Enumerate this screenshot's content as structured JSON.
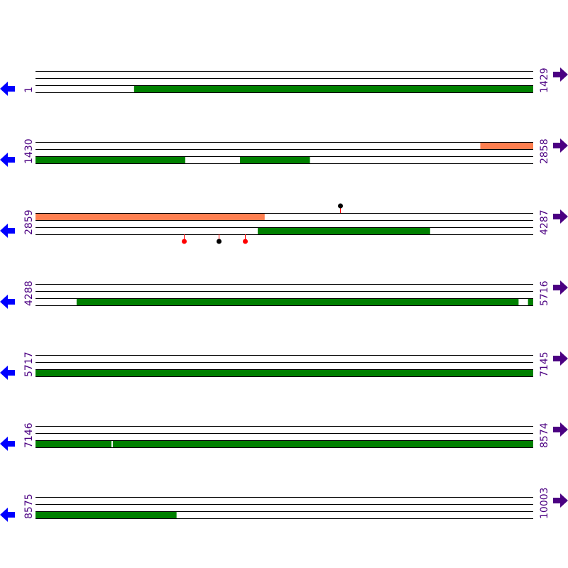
{
  "colors": {
    "line": "#000000",
    "cds": "#008000",
    "region": "#ff7f50",
    "stem": "#ff0000",
    "arrow_left": "#0000ff",
    "arrow_right": "#4b0082",
    "label": "#4b0082"
  },
  "icons": {
    "left": "arrow-left-icon",
    "right": "arrow-right-icon"
  },
  "rows": [
    {
      "start": "1",
      "end": "1429",
      "from": 1,
      "to": 1429,
      "features": [
        {
          "track": 2,
          "type": "cds",
          "from": 284,
          "to": 1429
        }
      ],
      "markers": []
    },
    {
      "start": "1430",
      "end": "2858",
      "from": 1430,
      "to": 2858,
      "features": [
        {
          "track": 0,
          "type": "region",
          "from": 2707,
          "to": 2858
        },
        {
          "track": 2,
          "type": "cds",
          "from": 1430,
          "to": 1860
        },
        {
          "track": 2,
          "type": "cds",
          "from": 2017,
          "to": 2218
        }
      ],
      "markers": []
    },
    {
      "start": "2859",
      "end": "4287",
      "from": 2859,
      "to": 4287,
      "features": [
        {
          "track": 0,
          "type": "region",
          "from": 2859,
          "to": 3517
        },
        {
          "track": 2,
          "type": "cds",
          "from": 3497,
          "to": 3992
        }
      ],
      "markers": [
        {
          "side": "top",
          "pos": 3733,
          "color": "#000000"
        },
        {
          "side": "bottom",
          "pos": 3285,
          "color": "#ff0000"
        },
        {
          "side": "bottom",
          "pos": 3385,
          "color": "#000000"
        },
        {
          "side": "bottom",
          "pos": 3460,
          "color": "#ff0000"
        }
      ]
    },
    {
      "start": "4288",
      "end": "5716",
      "from": 4288,
      "to": 5716,
      "features": [
        {
          "track": 2,
          "type": "cds",
          "from": 4406,
          "to": 5675
        },
        {
          "track": 2,
          "type": "cds",
          "from": 5702,
          "to": 5716
        }
      ],
      "markers": []
    },
    {
      "start": "5717",
      "end": "7145",
      "from": 5717,
      "to": 7145,
      "features": [
        {
          "track": 2,
          "type": "cds",
          "from": 5717,
          "to": 7145
        }
      ],
      "markers": []
    },
    {
      "start": "7146",
      "end": "8574",
      "from": 7146,
      "to": 8574,
      "features": [
        {
          "track": 2,
          "type": "cds",
          "from": 7146,
          "to": 7364
        },
        {
          "track": 2,
          "type": "cds",
          "from": 7368,
          "to": 8574
        }
      ],
      "markers": []
    },
    {
      "start": "8575",
      "end": "10003",
      "from": 8575,
      "to": 10003,
      "features": [
        {
          "track": 2,
          "type": "cds",
          "from": 8575,
          "to": 8980
        }
      ],
      "markers": []
    }
  ]
}
